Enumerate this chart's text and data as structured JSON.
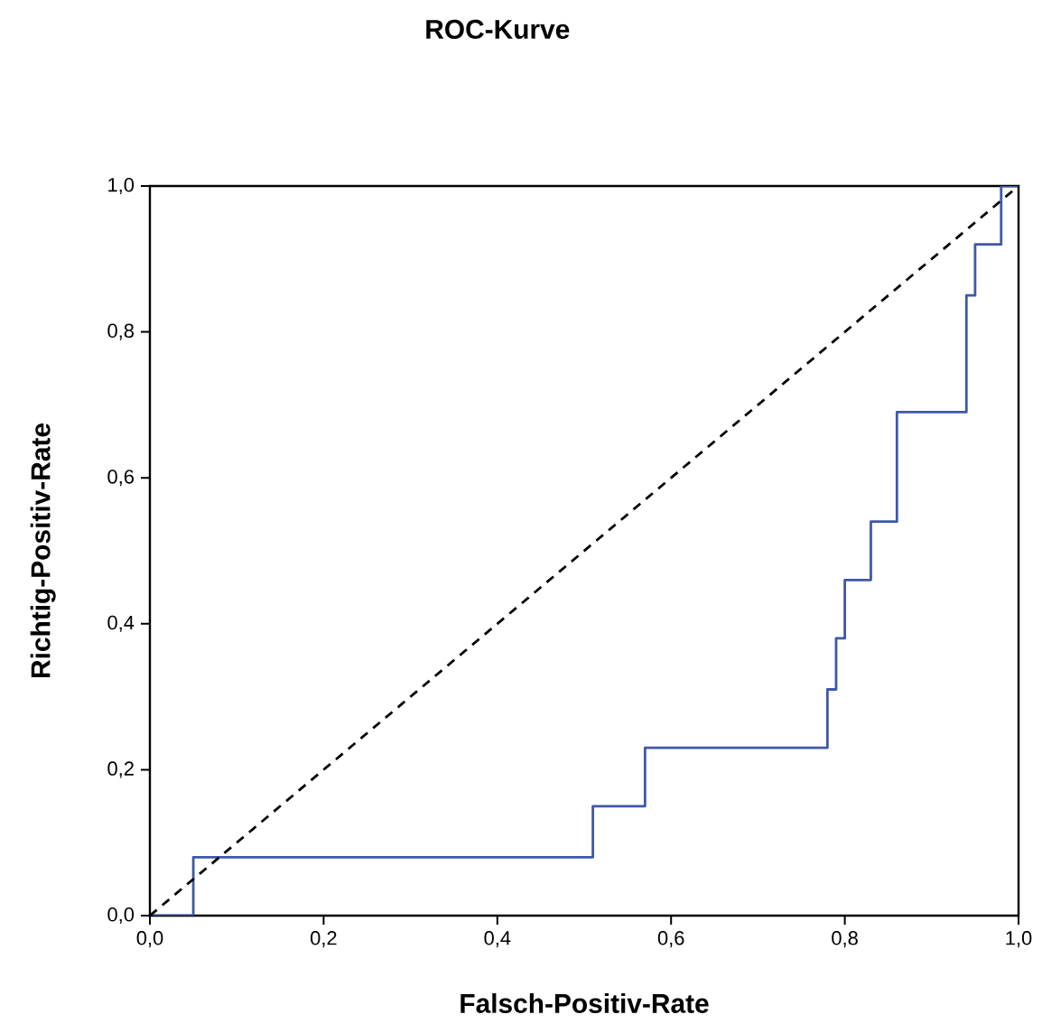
{
  "chart_data": {
    "type": "line",
    "title": "ROC-Kurve",
    "xlabel": "Falsch-Positiv-Rate",
    "ylabel": "Richtig-Positiv-Rate",
    "xlim": [
      0,
      1
    ],
    "ylim": [
      0,
      1
    ],
    "xticks": [
      {
        "value": 0,
        "label": "0,0"
      },
      {
        "value": 0.2,
        "label": "0,2"
      },
      {
        "value": 0.4,
        "label": "0,4"
      },
      {
        "value": 0.6,
        "label": "0,6"
      },
      {
        "value": 0.8,
        "label": "0,8"
      },
      {
        "value": 1,
        "label": "1,0"
      }
    ],
    "yticks": [
      {
        "value": 0,
        "label": "0,0"
      },
      {
        "value": 0.2,
        "label": "0,2"
      },
      {
        "value": 0.4,
        "label": "0,4"
      },
      {
        "value": 0.6,
        "label": "0,6"
      },
      {
        "value": 0.8,
        "label": "0,8"
      },
      {
        "value": 1,
        "label": "1,0"
      }
    ],
    "series": [
      {
        "color": "#3f58a8",
        "line_style": "solid",
        "x": [
          0,
          0.05,
          0.05,
          0.51,
          0.51,
          0.57,
          0.57,
          0.78,
          0.78,
          0.79,
          0.79,
          0.8,
          0.8,
          0.83,
          0.83,
          0.86,
          0.86,
          0.94,
          0.94,
          0.95,
          0.95,
          0.98,
          0.98,
          1
        ],
        "values": [
          0,
          0,
          0.08,
          0.08,
          0.15,
          0.15,
          0.23,
          0.23,
          0.31,
          0.31,
          0.38,
          0.38,
          0.46,
          0.46,
          0.54,
          0.54,
          0.69,
          0.69,
          0.85,
          0.85,
          0.92,
          0.92,
          1,
          1
        ]
      },
      {
        "color": "#000000",
        "line_style": "dashed",
        "x": [
          0,
          1
        ],
        "values": [
          0,
          1
        ]
      }
    ]
  }
}
